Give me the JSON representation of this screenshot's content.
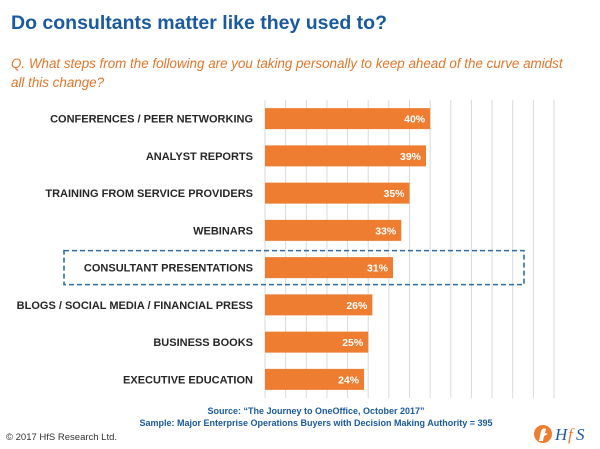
{
  "slide": {
    "title": "Do consultants matter like they used to?",
    "question": "Q. What steps from the following are you taking personally to keep ahead of the curve amidst all this change?",
    "source": "Source: “The Journey to OneOffice, October 2017”",
    "sample": "Sample: Major Enterprise Operations Buyers with Decision Making Authority = 395",
    "copyright": "© 2017 HfS Research Ltd.",
    "logo_text": "HfS"
  },
  "colors": {
    "title": "#1a5aa0",
    "question": "#e3762a",
    "bar": "#ee7d31",
    "highlight_box": "#2e6da4",
    "gridline": "#d9d9d9"
  },
  "chart_data": {
    "type": "bar",
    "orientation": "horizontal",
    "categories": [
      "CONFERENCES / PEER NETWORKING",
      "ANALYST REPORTS",
      "TRAINING FROM SERVICE PROVIDERS",
      "WEBINARS",
      "CONSULTANT PRESENTATIONS",
      "BLOGS / SOCIAL MEDIA / FINANCIAL PRESS",
      "BUSINESS BOOKS",
      "EXECUTIVE EDUCATION"
    ],
    "values": [
      40,
      39,
      35,
      33,
      31,
      26,
      25,
      24
    ],
    "value_labels": [
      "40%",
      "39%",
      "35%",
      "33%",
      "31%",
      "26%",
      "25%",
      "24%"
    ],
    "highlighted_category": "CONSULTANT PRESENTATIONS",
    "xlim": [
      0,
      70
    ],
    "grid": true,
    "gridline_step": 5,
    "title": "",
    "xlabel": "",
    "ylabel": ""
  }
}
